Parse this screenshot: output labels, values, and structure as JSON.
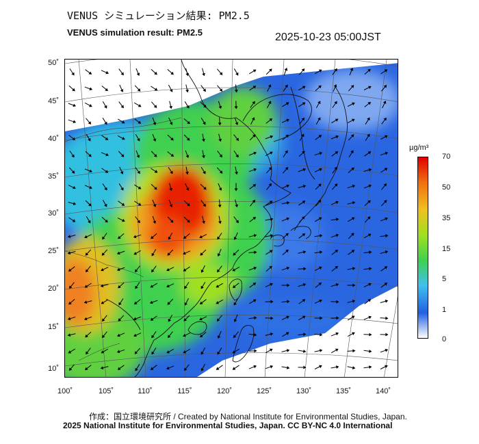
{
  "header": {
    "title_jp": "VENUS シミュレーション結果: PM2.5",
    "title_en": "VENUS simulation result: PM2.5",
    "timestamp": "2025-10-23 05:00JST"
  },
  "map": {
    "lat_labels": [
      "50˚",
      "45˚",
      "40˚",
      "35˚",
      "30˚",
      "25˚",
      "20˚",
      "15˚",
      "10˚"
    ],
    "lon_labels": [
      "100˚",
      "105˚",
      "110˚",
      "115˚",
      "120˚",
      "125˚",
      "130˚",
      "135˚",
      "140˚"
    ],
    "wind_vectors": "wind-arrow-icon"
  },
  "colorbar": {
    "unit": "µg/m³",
    "ticks": [
      "70",
      "50",
      "35",
      "15",
      "5",
      "1",
      "0"
    ],
    "colors": [
      "#ffffff",
      "#2060e0",
      "#40c0f0",
      "#40d050",
      "#a0e020",
      "#f0c020",
      "#f07010",
      "#e00000"
    ]
  },
  "footer": {
    "credit_jp": "作成：国立環境研究所 / Created by National Institute for Environmental Studies, Japan.",
    "credit_en": "2025 National Institute for Environmental Studies, Japan. CC BY-NC 4.0 International"
  }
}
